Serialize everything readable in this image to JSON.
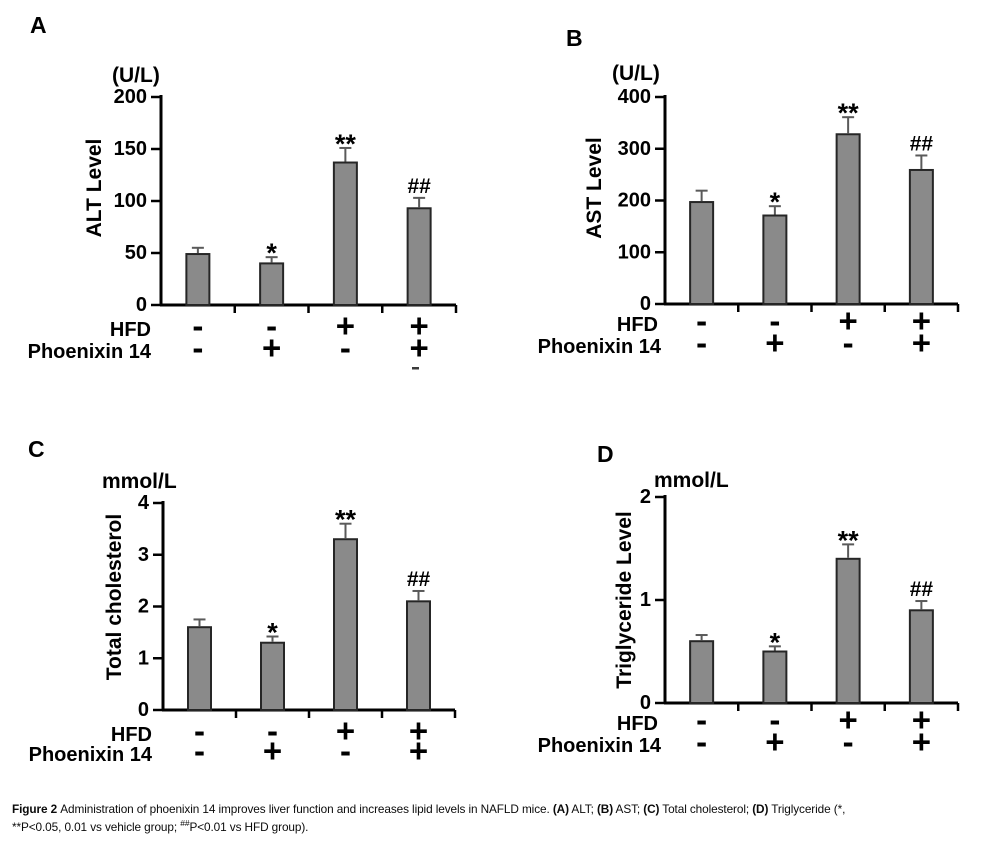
{
  "figure": {
    "background": "#ffffff",
    "bar_fill": "#8a8a8a",
    "bar_stroke": "#262626",
    "error_color": "#5a5a5a",
    "axis_color": "#000000",
    "text_color": "#000000"
  },
  "row_labels": [
    "HFD",
    "Phoenixin 14"
  ],
  "chart_data": [
    {
      "type": "bar",
      "panel": "A",
      "unit": "(U/L)",
      "ylabel": "ALT Level",
      "ylim": [
        0,
        200
      ],
      "yticks": [
        0,
        50,
        100,
        150,
        200
      ],
      "groups": {
        "HFD": [
          "-",
          "-",
          "+",
          "+"
        ],
        "Phoenixin 14": [
          "-",
          "+",
          "-",
          "+"
        ]
      },
      "values": [
        49,
        40,
        137,
        93
      ],
      "errors": [
        6,
        6,
        14,
        10
      ],
      "sig": [
        "",
        "*",
        "**",
        "##"
      ]
    },
    {
      "type": "bar",
      "panel": "B",
      "unit": "(U/L)",
      "ylabel": "AST Level",
      "ylim": [
        0,
        400
      ],
      "yticks": [
        0,
        100,
        200,
        300,
        400
      ],
      "groups": {
        "HFD": [
          "-",
          "-",
          "+",
          "+"
        ],
        "Phoenixin 14": [
          "-",
          "+",
          "-",
          "+"
        ]
      },
      "values": [
        197,
        171,
        328,
        259
      ],
      "errors": [
        22,
        18,
        33,
        28
      ],
      "sig": [
        "",
        "*",
        "**",
        "##"
      ]
    },
    {
      "type": "bar",
      "panel": "C",
      "unit": "mmol/L",
      "ylabel": "Total cholesterol",
      "ylim": [
        0,
        4
      ],
      "yticks": [
        0,
        1,
        2,
        3,
        4
      ],
      "groups": {
        "HFD": [
          "-",
          "-",
          "+",
          "+"
        ],
        "Phoenixin 14": [
          "-",
          "+",
          "-",
          "+"
        ]
      },
      "values": [
        1.6,
        1.3,
        3.3,
        2.1
      ],
      "errors": [
        0.15,
        0.12,
        0.3,
        0.2
      ],
      "sig": [
        "",
        "*",
        "**",
        "##"
      ]
    },
    {
      "type": "bar",
      "panel": "D",
      "unit": "mmol/L",
      "ylabel": "Triglyceride Level",
      "ylim": [
        0,
        2
      ],
      "yticks": [
        0,
        1,
        2
      ],
      "groups": {
        "HFD": [
          "-",
          "-",
          "+",
          "+"
        ],
        "Phoenixin 14": [
          "-",
          "+",
          "-",
          "+"
        ]
      },
      "values": [
        0.6,
        0.5,
        1.4,
        0.9
      ],
      "errors": [
        0.06,
        0.05,
        0.14,
        0.09
      ],
      "sig": [
        "",
        "*",
        "**",
        "##"
      ]
    }
  ],
  "caption": {
    "parts": [
      {
        "text": "Figure 2 ",
        "bold": true
      },
      {
        "text": "Administration of phoenixin 14 improves liver function and increases lipid levels in NAFLD mice. "
      },
      {
        "text": "(A)",
        "bold": true
      },
      {
        "text": " ALT; "
      },
      {
        "text": "(B)",
        "bold": true
      },
      {
        "text": " AST; "
      },
      {
        "text": "(C)",
        "bold": true
      },
      {
        "text": " Total cholesterol; "
      },
      {
        "text": "(D)",
        "bold": true
      },
      {
        "text": " Triglyceride (*,"
      },
      {
        "br": true
      },
      {
        "text": "**P<0.05, 0.01 vs vehicle group; "
      },
      {
        "text": "##",
        "sup": true
      },
      {
        "text": "P<0.01 vs HFD group)."
      }
    ]
  }
}
